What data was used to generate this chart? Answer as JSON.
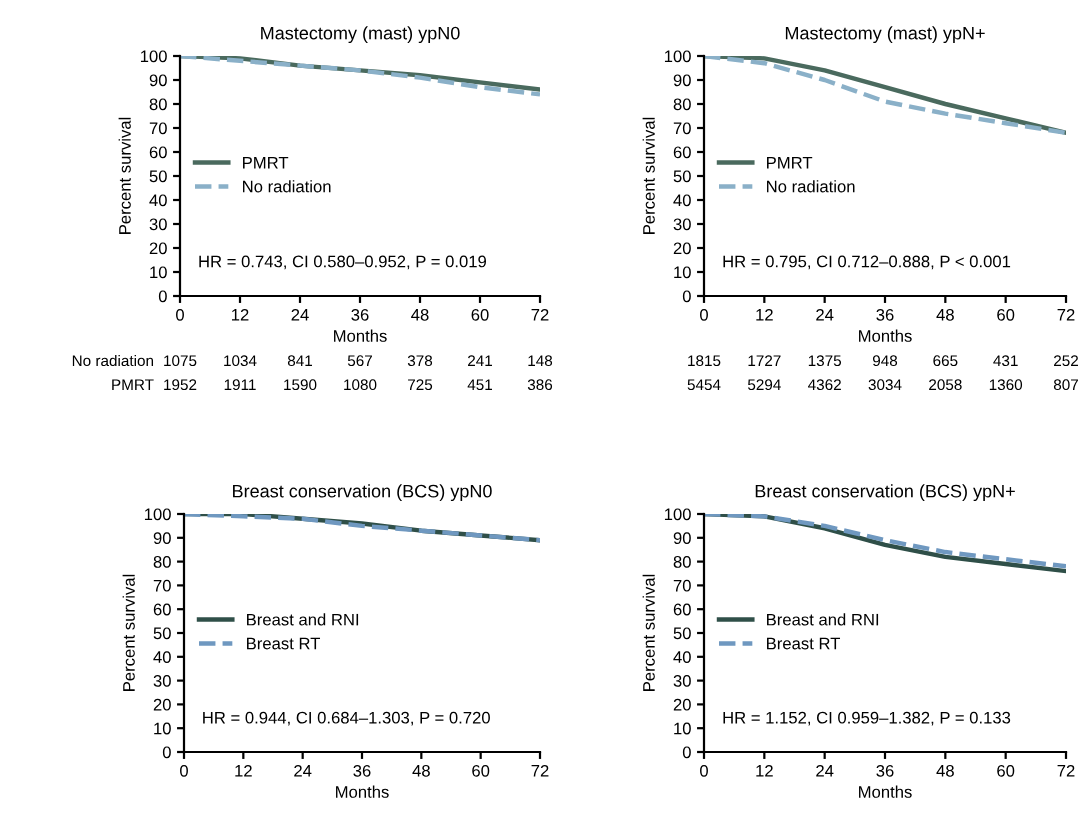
{
  "chart_data": [
    {
      "type": "line",
      "title": "Mastectomy (mast) ypN0",
      "xlabel": "Months",
      "ylabel": "Percent survival",
      "x": [
        0,
        12,
        24,
        36,
        48,
        60,
        72
      ],
      "xlim": [
        0,
        72
      ],
      "ylim": [
        0,
        100
      ],
      "xticks": [
        0,
        12,
        24,
        36,
        48,
        60,
        72
      ],
      "yticks": [
        0,
        10,
        20,
        30,
        40,
        50,
        60,
        70,
        80,
        90,
        100
      ],
      "legend": "left",
      "marker": "none",
      "series": [
        {
          "name": "PMRT",
          "color": "#4a6a5e",
          "line_style": "solid",
          "values": [
            100,
            99,
            96,
            94,
            92,
            89,
            86
          ]
        },
        {
          "name": "No radiation",
          "color": "#8ab0c8",
          "line_style": "dashed",
          "values": [
            100,
            98,
            96,
            94,
            91,
            87,
            84
          ]
        }
      ],
      "annotations": [
        "HR = 0.743, CI 0.580–0.952, P = 0.019",
        "No radiation",
        "1075",
        "1034",
        "841",
        "567",
        "378",
        "241",
        "148",
        "PMRT",
        "1952",
        "1911",
        "1590",
        "1080",
        "725",
        "451",
        "386"
      ]
    },
    {
      "type": "line",
      "title": "Mastectomy (mast) ypN+",
      "xlabel": "Months",
      "ylabel": "Percent survival",
      "x": [
        0,
        12,
        24,
        36,
        48,
        60,
        72
      ],
      "xlim": [
        0,
        72
      ],
      "ylim": [
        0,
        100
      ],
      "xticks": [
        0,
        12,
        24,
        36,
        48,
        60,
        72
      ],
      "yticks": [
        0,
        10,
        20,
        30,
        40,
        50,
        60,
        70,
        80,
        90,
        100
      ],
      "legend": "left",
      "marker": "none",
      "series": [
        {
          "name": "PMRT",
          "color": "#4a6a5e",
          "line_style": "solid",
          "values": [
            100,
            99,
            94,
            87,
            80,
            74,
            68
          ]
        },
        {
          "name": "No radiation",
          "color": "#8ab0c8",
          "line_style": "dashed",
          "values": [
            100,
            97,
            90,
            81,
            76,
            72,
            68
          ]
        }
      ],
      "annotations": [
        "HR = 0.795, CI 0.712–0.888, P < 0.001",
        "1815",
        "1727",
        "1375",
        "948",
        "665",
        "431",
        "252",
        "5454",
        "5294",
        "4362",
        "3034",
        "2058",
        "1360",
        "807"
      ]
    },
    {
      "type": "line",
      "title": "Breast conservation (BCS) ypN0",
      "xlabel": "Months",
      "ylabel": "Percent survival",
      "x": [
        0,
        12,
        24,
        36,
        48,
        60,
        72
      ],
      "xlim": [
        0,
        72
      ],
      "ylim": [
        0,
        100
      ],
      "xticks": [
        0,
        12,
        24,
        36,
        48,
        60,
        72
      ],
      "yticks": [
        0,
        10,
        20,
        30,
        40,
        50,
        60,
        70,
        80,
        90,
        100
      ],
      "legend": "left",
      "marker": "none",
      "series": [
        {
          "name": "Breast and RNI",
          "color": "#2f4f48",
          "line_style": "solid",
          "values": [
            100,
            100,
            98,
            96,
            93,
            91,
            89
          ]
        },
        {
          "name": "Breast RT",
          "color": "#6f98c0",
          "line_style": "dashed",
          "values": [
            100,
            99,
            98,
            95,
            93,
            91,
            89
          ]
        }
      ],
      "annotations": [
        "HR = 0.944, CI 0.684–1.303, P = 0.720"
      ]
    },
    {
      "type": "line",
      "title": "Breast conservation (BCS) ypN+",
      "xlabel": "Months",
      "ylabel": "Percent survival",
      "x": [
        0,
        12,
        24,
        36,
        48,
        60,
        72
      ],
      "xlim": [
        0,
        72
      ],
      "ylim": [
        0,
        100
      ],
      "xticks": [
        0,
        12,
        24,
        36,
        48,
        60,
        72
      ],
      "yticks": [
        0,
        10,
        20,
        30,
        40,
        50,
        60,
        70,
        80,
        90,
        100
      ],
      "legend": "left",
      "marker": "none",
      "series": [
        {
          "name": "Breast and RNI",
          "color": "#2f4f48",
          "line_style": "solid",
          "values": [
            100,
            99,
            94,
            87,
            82,
            79,
            76
          ]
        },
        {
          "name": "Breast RT",
          "color": "#6f98c0",
          "line_style": "dashed",
          "values": [
            100,
            99,
            95,
            89,
            84,
            81,
            78
          ]
        }
      ],
      "annotations": [
        "HR = 1.152, CI 0.959–1.382, P = 0.133"
      ]
    }
  ]
}
